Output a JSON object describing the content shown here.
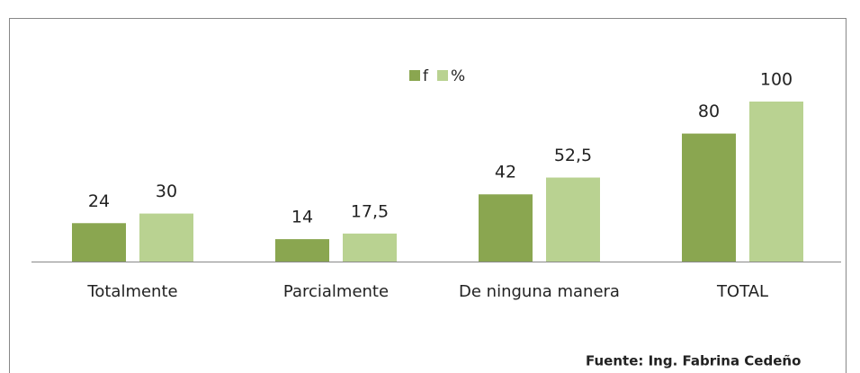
{
  "chart_data": {
    "type": "bar",
    "categories": [
      "Totalmente",
      "Parcialmente",
      "De ninguna manera",
      "TOTAL"
    ],
    "series": [
      {
        "name": "f",
        "color": "#8aa650",
        "values": [
          24,
          14,
          42,
          80
        ],
        "value_labels": [
          "24",
          "14",
          "42",
          "80"
        ]
      },
      {
        "name": "%",
        "color": "#b9d291",
        "values": [
          30,
          17.5,
          52.5,
          100
        ],
        "value_labels": [
          "30",
          "17,5",
          "52,5",
          "100"
        ]
      }
    ],
    "ylim": [
      0,
      100
    ],
    "legend": "top",
    "source": "Fuente: Ing. Fabrina Cedeño"
  }
}
